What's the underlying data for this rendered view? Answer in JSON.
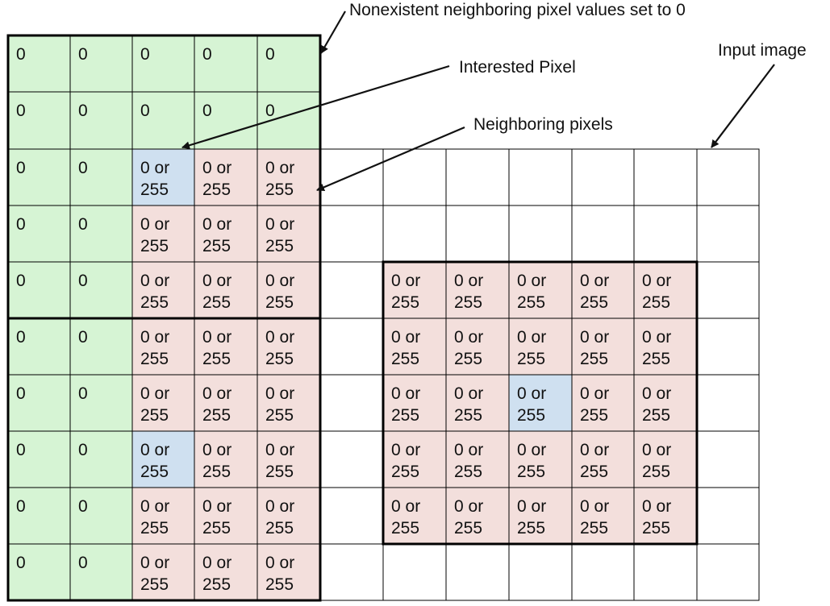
{
  "annotations": {
    "nonexistent": "Nonexistent neighboring pixel values set to 0",
    "interested": "Interested Pixel",
    "input_image": "Input image",
    "neighboring": "Neighboring pixels"
  },
  "cell_values": {
    "zero": "0",
    "binary_line1": "0 or",
    "binary_line2": "255"
  },
  "colors": {
    "padding": "#d6f4d4",
    "neighbor": "#f3dfdc",
    "interested": "#cfe0f0",
    "grid_line": "#000000",
    "background": "#ffffff"
  },
  "grid": {
    "left_block": {
      "rows": 10,
      "cols": 5,
      "row_types": [
        [
          "zero",
          "zero",
          "zero",
          "zero",
          "zero"
        ],
        [
          "zero",
          "zero",
          "zero",
          "zero",
          "zero"
        ],
        [
          "zero",
          "zero",
          "interested",
          "neighbor",
          "neighbor"
        ],
        [
          "zero",
          "zero",
          "neighbor",
          "neighbor",
          "neighbor"
        ],
        [
          "zero",
          "zero",
          "neighbor",
          "neighbor",
          "neighbor"
        ],
        [
          "zero",
          "zero",
          "neighbor",
          "neighbor",
          "neighbor"
        ],
        [
          "zero",
          "zero",
          "neighbor",
          "neighbor",
          "neighbor"
        ],
        [
          "zero",
          "zero",
          "interested",
          "neighbor",
          "neighbor"
        ],
        [
          "zero",
          "zero",
          "neighbor",
          "neighbor",
          "neighbor"
        ],
        [
          "zero",
          "zero",
          "neighbor",
          "neighbor",
          "neighbor"
        ]
      ]
    },
    "input_image": {
      "rows": 8,
      "cols": 7
    },
    "right_window": {
      "rows": 5,
      "cols": 5,
      "interested_row": 2,
      "interested_col": 2
    }
  }
}
